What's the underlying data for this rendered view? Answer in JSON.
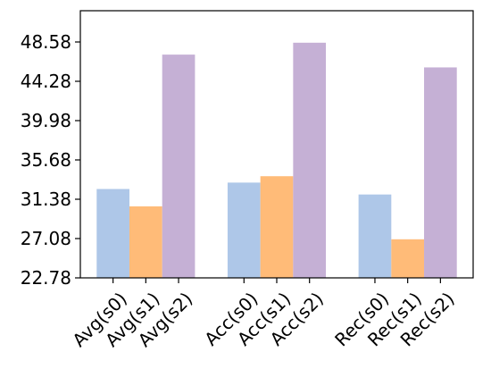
{
  "chart_data": {
    "type": "bar",
    "categories": [
      "Avg(s0)",
      "Avg(s1)",
      "Avg(s2)",
      "Acc(s0)",
      "Acc(s1)",
      "Acc(s2)",
      "Rec(s0)",
      "Rec(s1)",
      "Rec(s2)"
    ],
    "groups": [
      {
        "values": [
          32.5,
          30.6,
          47.2
        ],
        "labels": [
          "Avg(s0)",
          "Avg(s1)",
          "Avg(s2)"
        ]
      },
      {
        "values": [
          33.2,
          33.9,
          48.5
        ],
        "labels": [
          "Acc(s0)",
          "Acc(s1)",
          "Acc(s2)"
        ]
      },
      {
        "values": [
          31.9,
          27.0,
          45.8
        ],
        "labels": [
          "Rec(s0)",
          "Rec(s1)",
          "Rec(s2)"
        ]
      }
    ],
    "bar_colors": [
      "#aec7e8",
      "#ffbb78",
      "#c5b0d5"
    ],
    "yticks": [
      "22.78",
      "27.08",
      "31.38",
      "35.68",
      "39.98",
      "44.28",
      "48.58"
    ],
    "ylim": [
      22.78,
      52.0
    ],
    "title": "",
    "xlabel": "",
    "ylabel": "",
    "grid": false,
    "legend": "none"
  }
}
